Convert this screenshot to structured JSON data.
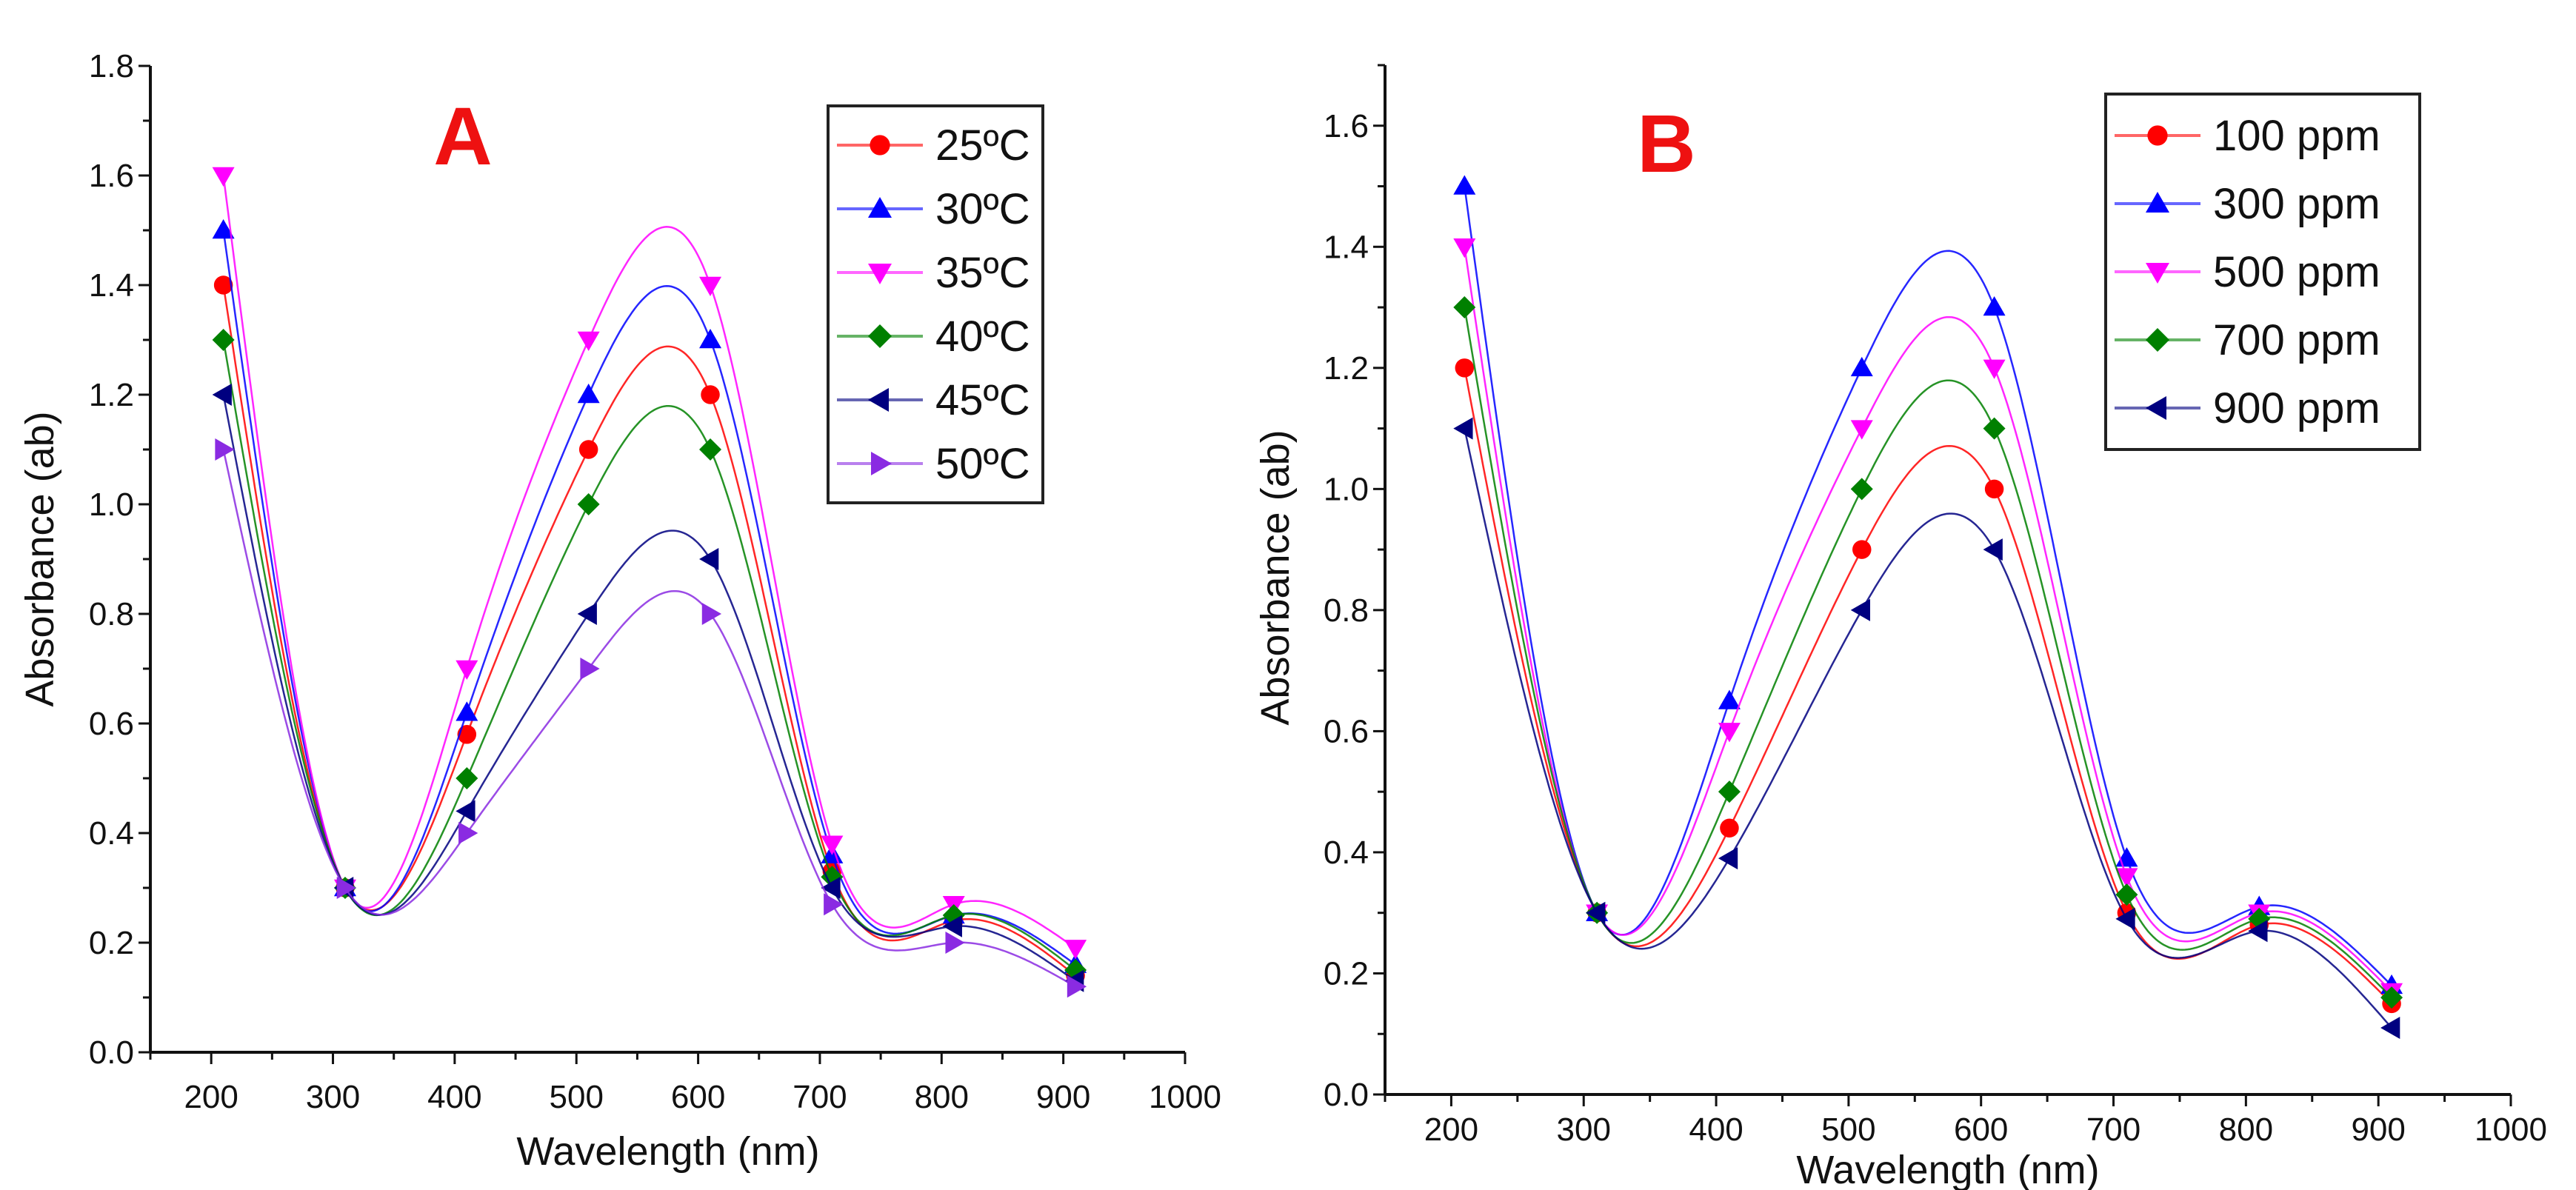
{
  "chart_data": [
    {
      "type": "line",
      "panel_label": "A",
      "xlabel": "Wavelength (nm)",
      "ylabel": "Absorbance (ab)",
      "xlim": [
        150,
        1000
      ],
      "ylim": [
        0,
        1.8
      ],
      "x_ticks": [
        200,
        300,
        400,
        500,
        600,
        700,
        800,
        900,
        1000
      ],
      "y_ticks": [
        0.0,
        0.2,
        0.4,
        0.6,
        0.8,
        1.0,
        1.2,
        1.4,
        1.6,
        1.8
      ],
      "y_tick_labels": [
        "0.0",
        "0.2",
        "0.4",
        "0.6",
        "0.8",
        "1.0",
        "1.2",
        "1.4",
        "1.6",
        "1.8"
      ],
      "legend_position": "top-right",
      "x": [
        210,
        310,
        410,
        510,
        610,
        710,
        810,
        910
      ],
      "series": [
        {
          "name": "25ºC",
          "color": "#ff0000",
          "marker": "circle",
          "values": [
            1.4,
            0.3,
            0.58,
            1.1,
            1.2,
            0.33,
            0.24,
            0.14
          ]
        },
        {
          "name": "30ºC",
          "color": "#0000ff",
          "marker": "triangle-up",
          "values": [
            1.5,
            0.3,
            0.62,
            1.2,
            1.3,
            0.36,
            0.25,
            0.16
          ]
        },
        {
          "name": "35ºC",
          "color": "#ff00ff",
          "marker": "triangle-down",
          "values": [
            1.6,
            0.3,
            0.7,
            1.3,
            1.4,
            0.38,
            0.27,
            0.19
          ]
        },
        {
          "name": "40ºC",
          "color": "#008000",
          "marker": "diamond",
          "values": [
            1.3,
            0.3,
            0.5,
            1.0,
            1.1,
            0.32,
            0.25,
            0.15
          ]
        },
        {
          "name": "45ºC",
          "color": "#000080",
          "marker": "triangle-left",
          "values": [
            1.2,
            0.3,
            0.44,
            0.8,
            0.9,
            0.3,
            0.23,
            0.13
          ]
        },
        {
          "name": "50ºC",
          "color": "#8a2be2",
          "marker": "triangle-right",
          "values": [
            1.1,
            0.3,
            0.4,
            0.7,
            0.8,
            0.27,
            0.2,
            0.12
          ]
        }
      ]
    },
    {
      "type": "line",
      "panel_label": "B",
      "xlabel": "Wavelength (nm)",
      "ylabel": "Absorbance (ab)",
      "xlim": [
        150,
        1000
      ],
      "ylim": [
        0,
        1.7
      ],
      "x_ticks": [
        200,
        300,
        400,
        500,
        600,
        700,
        800,
        900,
        1000
      ],
      "y_ticks": [
        0.0,
        0.2,
        0.4,
        0.6,
        0.8,
        1.0,
        1.2,
        1.4,
        1.6
      ],
      "y_tick_labels": [
        "0.0",
        "0.2",
        "0.4",
        "0.6",
        "0.8",
        "1.0",
        "1.2",
        "1.4",
        "1.6"
      ],
      "legend_position": "top-right",
      "x": [
        210,
        310,
        410,
        510,
        610,
        710,
        810,
        910
      ],
      "series": [
        {
          "name": "100 ppm",
          "color": "#ff0000",
          "marker": "circle",
          "values": [
            1.2,
            0.3,
            0.44,
            0.9,
            1.0,
            0.3,
            0.28,
            0.15
          ]
        },
        {
          "name": "300 ppm",
          "color": "#0000ff",
          "marker": "triangle-up",
          "values": [
            1.5,
            0.3,
            0.65,
            1.2,
            1.3,
            0.39,
            0.31,
            0.18
          ]
        },
        {
          "name": "500 ppm",
          "color": "#ff00ff",
          "marker": "triangle-down",
          "values": [
            1.4,
            0.3,
            0.6,
            1.1,
            1.2,
            0.36,
            0.3,
            0.17
          ]
        },
        {
          "name": "700 ppm",
          "color": "#008000",
          "marker": "diamond",
          "values": [
            1.3,
            0.3,
            0.5,
            1.0,
            1.1,
            0.33,
            0.29,
            0.16
          ]
        },
        {
          "name": "900 ppm",
          "color": "#000080",
          "marker": "triangle-left",
          "values": [
            1.1,
            0.3,
            0.39,
            0.8,
            0.9,
            0.29,
            0.27,
            0.11
          ]
        }
      ]
    }
  ]
}
